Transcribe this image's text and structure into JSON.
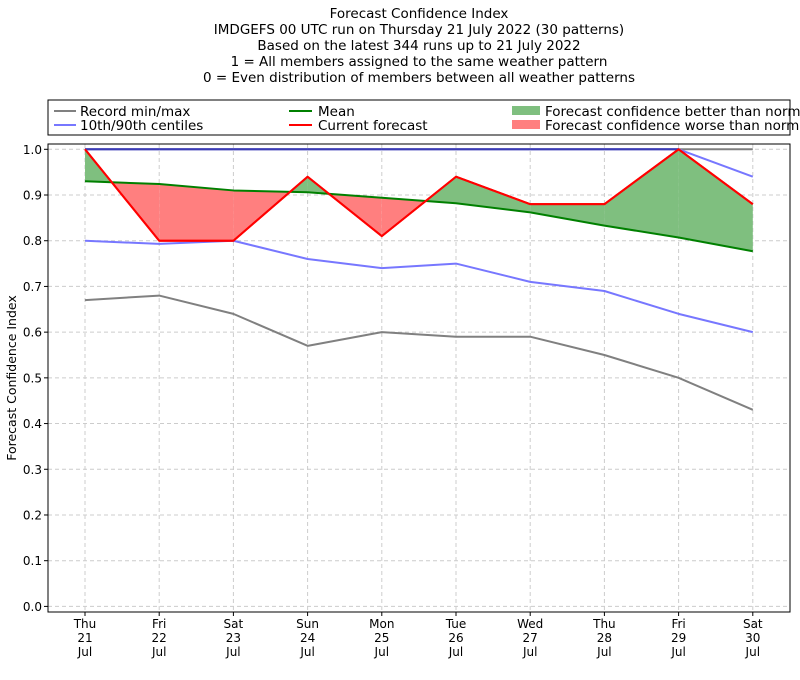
{
  "chart_data": {
    "type": "line",
    "title_lines": [
      "Forecast Confidence Index",
      "IMDGEFS 00 UTC run on Thursday 21 July 2022 (30 patterns)",
      "Based on the latest 344 runs up to 21 July 2022",
      "1 = All members assigned to the same weather pattern",
      "0 = Even distribution of members between all weather patterns"
    ],
    "ylabel": "Forecast Confidence Index",
    "xlabel": "",
    "ylim": [
      0.0,
      1.0
    ],
    "yticks": [
      "0.0",
      "0.1",
      "0.2",
      "0.3",
      "0.4",
      "0.5",
      "0.6",
      "0.7",
      "0.8",
      "0.9",
      "1.0"
    ],
    "categories": [
      [
        "Thu",
        "21",
        "Jul"
      ],
      [
        "Fri",
        "22",
        "Jul"
      ],
      [
        "Sat",
        "23",
        "Jul"
      ],
      [
        "Sun",
        "24",
        "Jul"
      ],
      [
        "Mon",
        "25",
        "Jul"
      ],
      [
        "Tue",
        "26",
        "Jul"
      ],
      [
        "Wed",
        "27",
        "Jul"
      ],
      [
        "Thu",
        "28",
        "Jul"
      ],
      [
        "Fri",
        "29",
        "Jul"
      ],
      [
        "Sat",
        "30",
        "Jul"
      ]
    ],
    "grid": true,
    "legend_placement": "top (above plot)",
    "series": {
      "record_min": {
        "name": "Record min/max",
        "color": "#808080",
        "values": [
          0.67,
          0.68,
          0.64,
          0.57,
          0.6,
          0.59,
          0.59,
          0.55,
          0.5,
          0.43
        ]
      },
      "record_max": {
        "name": "Record min/max",
        "color": "#808080",
        "values": [
          1.0,
          1.0,
          1.0,
          1.0,
          1.0,
          1.0,
          1.0,
          1.0,
          1.0,
          1.0
        ]
      },
      "p10": {
        "name": "10th/90th centiles",
        "color": "#7777ff",
        "values": [
          0.8,
          0.793,
          0.8,
          0.76,
          0.74,
          0.75,
          0.71,
          0.69,
          0.64,
          0.6
        ]
      },
      "p90": {
        "name": "10th/90th centiles",
        "color": "#7777ff",
        "values": [
          1.0,
          1.0,
          1.0,
          1.0,
          1.0,
          1.0,
          1.0,
          1.0,
          1.0,
          0.94
        ]
      },
      "mean": {
        "name": "Mean",
        "color": "#008000",
        "values": [
          0.93,
          0.924,
          0.91,
          0.906,
          0.894,
          0.882,
          0.862,
          0.833,
          0.807,
          0.777
        ]
      },
      "current": {
        "name": "Current forecast",
        "color": "#ff0000",
        "values": [
          1.0,
          0.8,
          0.8,
          0.94,
          0.81,
          0.94,
          0.88,
          0.88,
          1.0,
          0.88
        ]
      }
    },
    "fills": {
      "better": {
        "name": "Forecast confidence better than normal",
        "color": "#7fbf7f"
      },
      "worse": {
        "name": "Forecast confidence worse than normal",
        "color": "#ff7f7f"
      }
    }
  }
}
